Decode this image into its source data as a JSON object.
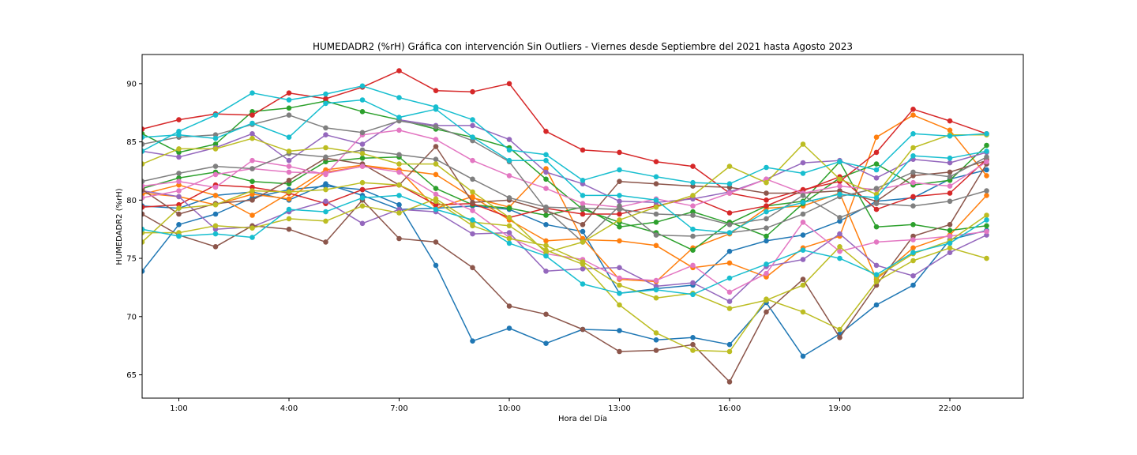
{
  "chart_data": {
    "type": "line",
    "title": "HUMEDADR2 (%rH) Gráfica con intervención Sin Outliers - Viernes desde Septiembre del 2021 hasta Agosto 2023",
    "xlabel": "Hora del Día",
    "ylabel": "HUMEDADR2 (%rH)",
    "xlim": [
      0,
      24
    ],
    "ylim": [
      63,
      92.5
    ],
    "x": [
      0,
      1,
      2,
      3,
      4,
      5,
      6,
      7,
      8,
      9,
      10,
      11,
      12,
      13,
      14,
      15,
      16,
      17,
      18,
      19,
      20,
      21,
      22,
      23
    ],
    "xticks": [
      1,
      4,
      7,
      10,
      13,
      16,
      19,
      22
    ],
    "xtick_labels": [
      "1:00",
      "4:00",
      "7:00",
      "10:00",
      "13:00",
      "16:00",
      "19:00",
      "22:00"
    ],
    "yticks": [
      65,
      70,
      75,
      80,
      85,
      90
    ],
    "ytick_labels": [
      "65",
      "70",
      "75",
      "80",
      "85",
      "90"
    ],
    "grid": false,
    "series": [
      {
        "color": "#1f77b4",
        "values": [
          73.9,
          77.9,
          78.8,
          80.2,
          80.9,
          81.2,
          80.9,
          79.6,
          74.4,
          67.9,
          69.0,
          67.7,
          68.9,
          68.8,
          68.0,
          68.2,
          67.6,
          71.2,
          66.6,
          68.5,
          71.0,
          72.7,
          76.6,
          77.4
        ]
      },
      {
        "color": "#1f77b4",
        "values": [
          79.5,
          79.3,
          80.4,
          80.7,
          80.0,
          81.4,
          80.4,
          79.2,
          79.3,
          79.5,
          79.2,
          77.9,
          77.3,
          72.0,
          72.4,
          72.7,
          75.6,
          76.5,
          77.0,
          78.2,
          79.9,
          80.2,
          81.8,
          82.6
        ]
      },
      {
        "color": "#ff7f0e",
        "values": [
          80.5,
          81.3,
          80.4,
          78.7,
          80.6,
          82.6,
          83.0,
          82.6,
          82.2,
          80.2,
          79.4,
          82.7,
          76.6,
          76.5,
          76.1,
          74.2,
          74.6,
          73.4,
          75.9,
          76.9,
          85.4,
          87.3,
          86.0,
          82.1
        ]
      },
      {
        "color": "#ff7f0e",
        "values": [
          80.6,
          80.3,
          79.6,
          80.5,
          80.1,
          82.4,
          82.9,
          82.6,
          79.3,
          80.3,
          78.3,
          76.5,
          76.7,
          73.2,
          73.0,
          75.9,
          77.1,
          79.3,
          79.5,
          80.6,
          73.2,
          75.9,
          77.0,
          80.4
        ]
      },
      {
        "color": "#2ca02c",
        "values": [
          85.7,
          84.1,
          84.8,
          87.6,
          87.9,
          88.5,
          87.6,
          86.9,
          86.1,
          85.4,
          84.5,
          81.8,
          79.2,
          78.1,
          77.2,
          75.7,
          78.1,
          76.9,
          79.7,
          81.9,
          83.1,
          81.3,
          81.7,
          84.7
        ]
      },
      {
        "color": "#2ca02c",
        "values": [
          81.0,
          81.9,
          82.4,
          81.6,
          81.4,
          83.3,
          83.6,
          83.7,
          81.0,
          79.6,
          79.3,
          78.7,
          79.4,
          77.7,
          78.1,
          79.0,
          78.0,
          79.5,
          79.9,
          83.3,
          77.7,
          77.9,
          77.4,
          77.8
        ]
      },
      {
        "color": "#d62728",
        "values": [
          86.1,
          86.9,
          87.4,
          87.3,
          89.2,
          88.7,
          89.7,
          91.1,
          89.4,
          89.3,
          90.0,
          85.9,
          84.3,
          84.1,
          83.3,
          82.9,
          80.6,
          80.0,
          80.9,
          81.6,
          84.1,
          87.8,
          86.8,
          85.7
        ]
      },
      {
        "color": "#d62728",
        "values": [
          79.4,
          79.6,
          81.3,
          81.1,
          80.6,
          79.7,
          80.9,
          81.3,
          79.6,
          79.7,
          78.5,
          79.3,
          78.8,
          78.8,
          79.5,
          80.2,
          78.9,
          79.5,
          80.8,
          82.0,
          79.2,
          80.3,
          80.6,
          83.5
        ]
      },
      {
        "color": "#9467bd",
        "values": [
          84.2,
          83.7,
          84.5,
          85.7,
          83.4,
          85.6,
          84.8,
          86.9,
          86.4,
          86.4,
          85.2,
          82.4,
          81.4,
          79.9,
          79.8,
          80.1,
          80.7,
          81.8,
          83.2,
          83.4,
          81.9,
          83.5,
          83.2,
          84.1
        ]
      },
      {
        "color": "#9467bd",
        "values": [
          80.8,
          80.3,
          77.5,
          77.7,
          79.0,
          79.9,
          78.0,
          79.2,
          79.0,
          77.1,
          77.2,
          73.9,
          74.1,
          74.2,
          72.6,
          72.9,
          71.3,
          74.3,
          74.9,
          77.1,
          74.4,
          73.5,
          75.5,
          77.0
        ]
      },
      {
        "color": "#8c564b",
        "values": [
          78.8,
          77.0,
          76.0,
          77.8,
          77.5,
          76.4,
          80.0,
          76.7,
          76.4,
          74.2,
          70.9,
          70.2,
          68.9,
          67.0,
          67.1,
          67.6,
          64.4,
          70.4,
          73.2,
          68.2,
          72.7,
          76.9,
          77.9,
          83.1
        ]
      },
      {
        "color": "#8c564b",
        "values": [
          80.9,
          78.8,
          79.7,
          80.0,
          81.7,
          83.6,
          83.1,
          81.3,
          84.6,
          79.8,
          80.0,
          79.1,
          77.9,
          81.6,
          81.4,
          81.2,
          81.1,
          80.6,
          80.6,
          80.8,
          79.9,
          82.1,
          82.4,
          83.4
        ]
      },
      {
        "color": "#e377c2",
        "values": [
          81.2,
          81.6,
          81.1,
          83.4,
          82.9,
          82.2,
          85.6,
          86.0,
          85.2,
          83.4,
          82.1,
          81.0,
          79.7,
          79.4,
          80.1,
          79.5,
          80.6,
          81.8,
          80.6,
          81.2,
          80.9,
          81.5,
          81.2,
          83.3
        ]
      },
      {
        "color": "#e377c2",
        "values": [
          80.2,
          80.8,
          82.2,
          82.7,
          82.4,
          82.3,
          82.9,
          82.4,
          80.5,
          79.1,
          76.8,
          75.4,
          74.9,
          73.3,
          73.1,
          74.4,
          72.1,
          73.7,
          78.1,
          75.6,
          76.4,
          76.6,
          76.9,
          77.3
        ]
      },
      {
        "color": "#7f7f7f",
        "values": [
          84.8,
          85.4,
          85.6,
          86.5,
          87.3,
          86.2,
          85.8,
          86.8,
          86.3,
          85.1,
          83.3,
          79.2,
          76.4,
          79.5,
          77.0,
          76.9,
          77.2,
          77.6,
          78.8,
          80.3,
          81.0,
          82.4,
          82.0,
          83.7
        ]
      },
      {
        "color": "#7f7f7f",
        "values": [
          81.6,
          82.3,
          82.9,
          82.7,
          84.0,
          83.7,
          84.3,
          83.9,
          83.5,
          81.8,
          80.2,
          79.4,
          79.3,
          79.2,
          78.8,
          78.7,
          77.9,
          78.4,
          80.4,
          78.5,
          79.7,
          79.5,
          79.9,
          80.8
        ]
      },
      {
        "color": "#bcbd22",
        "values": [
          83.1,
          84.4,
          84.4,
          85.3,
          84.2,
          84.5,
          84.0,
          83.1,
          83.1,
          80.7,
          78.5,
          75.5,
          76.4,
          78.3,
          79.4,
          80.4,
          82.9,
          81.5,
          84.8,
          81.8,
          80.5,
          84.5,
          85.6,
          85.6
        ]
      },
      {
        "color": "#bcbd22",
        "values": [
          77.2,
          77.2,
          77.8,
          77.6,
          78.4,
          78.2,
          79.5,
          78.9,
          80.1,
          78.1,
          77.8,
          75.7,
          74.5,
          71.0,
          68.6,
          67.1,
          67.0,
          71.5,
          70.4,
          68.9,
          73.0,
          74.8,
          75.9,
          75.0
        ]
      },
      {
        "color": "#bcbd22",
        "values": [
          76.4,
          79.3,
          79.6,
          80.8,
          80.7,
          80.9,
          81.5,
          81.3,
          79.9,
          77.8,
          76.7,
          76.1,
          74.7,
          72.7,
          71.6,
          72.0,
          70.7,
          71.4,
          72.7,
          76.0,
          73.4,
          75.4,
          76.5,
          78.7
        ]
      },
      {
        "color": "#17becf",
        "values": [
          84.2,
          85.9,
          87.3,
          89.2,
          88.6,
          89.1,
          89.8,
          88.8,
          88.0,
          86.9,
          84.3,
          83.9,
          81.7,
          82.6,
          82.0,
          81.5,
          81.4,
          82.8,
          82.3,
          83.3,
          82.6,
          85.7,
          85.5,
          85.7
        ]
      },
      {
        "color": "#17becf",
        "values": [
          85.4,
          85.6,
          85.3,
          86.6,
          85.4,
          88.3,
          88.6,
          87.1,
          87.8,
          85.4,
          83.4,
          83.4,
          80.4,
          80.4,
          80.0,
          77.5,
          77.2,
          79.0,
          79.8,
          80.5,
          80.2,
          83.8,
          83.6,
          84.2
        ]
      },
      {
        "color": "#17becf",
        "values": [
          77.5,
          76.9,
          77.1,
          76.8,
          79.2,
          79.0,
          80.2,
          80.4,
          79.2,
          78.3,
          76.3,
          75.2,
          72.8,
          72.0,
          72.3,
          71.9,
          73.3,
          74.5,
          75.7,
          75.0,
          73.6,
          75.5,
          76.3,
          78.3
        ]
      }
    ]
  }
}
